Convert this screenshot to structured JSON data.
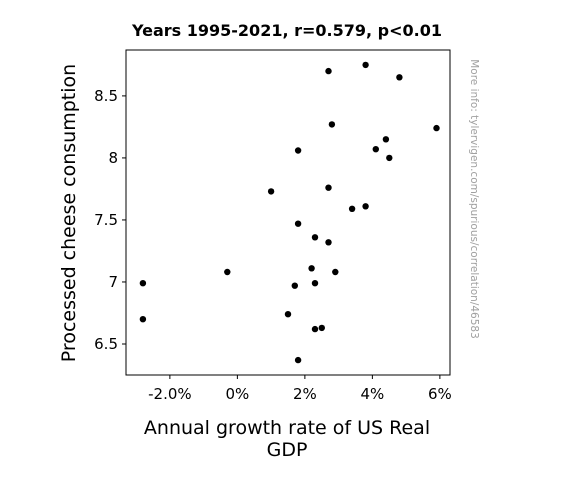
{
  "chart_data": {
    "type": "scatter",
    "title": "Years 1995-2021, r=0.579, p<0.01",
    "xlabel_lines": [
      "Annual growth rate of US Real",
      "GDP"
    ],
    "ylabel": "Processed cheese consumption",
    "watermark": "More info: tylervigen.com/spurious/correlation/46583",
    "xlim": [
      -3.3,
      6.3
    ],
    "ylim": [
      6.25,
      8.87
    ],
    "x_ticks": [
      {
        "value": -2,
        "label": "-2.0%"
      },
      {
        "value": 0,
        "label": "0%"
      },
      {
        "value": 2,
        "label": "2%"
      },
      {
        "value": 4,
        "label": "4%"
      },
      {
        "value": 6,
        "label": "6%"
      }
    ],
    "y_ticks": [
      {
        "value": 6.5,
        "label": "6.5"
      },
      {
        "value": 7,
        "label": "7"
      },
      {
        "value": 7.5,
        "label": "7.5"
      },
      {
        "value": 8,
        "label": "8"
      },
      {
        "value": 8.5,
        "label": "8.5"
      }
    ],
    "grid": false,
    "marker_color": "#000000",
    "points": [
      {
        "x": 2.7,
        "y": 8.7
      },
      {
        "x": 3.8,
        "y": 8.75
      },
      {
        "x": 4.8,
        "y": 8.65
      },
      {
        "x": 2.8,
        "y": 8.27
      },
      {
        "x": 5.9,
        "y": 8.24
      },
      {
        "x": 4.4,
        "y": 8.15
      },
      {
        "x": 4.1,
        "y": 8.07
      },
      {
        "x": 1.8,
        "y": 8.06
      },
      {
        "x": 4.5,
        "y": 8.0
      },
      {
        "x": 2.7,
        "y": 7.76
      },
      {
        "x": 1.0,
        "y": 7.73
      },
      {
        "x": 3.8,
        "y": 7.61
      },
      {
        "x": 3.4,
        "y": 7.59
      },
      {
        "x": 1.8,
        "y": 7.47
      },
      {
        "x": 2.3,
        "y": 7.36
      },
      {
        "x": 2.7,
        "y": 7.32
      },
      {
        "x": 2.2,
        "y": 7.11
      },
      {
        "x": 2.9,
        "y": 7.08
      },
      {
        "x": -0.3,
        "y": 7.08
      },
      {
        "x": -2.8,
        "y": 6.99
      },
      {
        "x": 2.3,
        "y": 6.99
      },
      {
        "x": 1.7,
        "y": 6.97
      },
      {
        "x": 1.5,
        "y": 6.74
      },
      {
        "x": -2.8,
        "y": 6.7
      },
      {
        "x": 2.5,
        "y": 6.63
      },
      {
        "x": 2.3,
        "y": 6.62
      },
      {
        "x": 1.8,
        "y": 6.37
      }
    ]
  }
}
